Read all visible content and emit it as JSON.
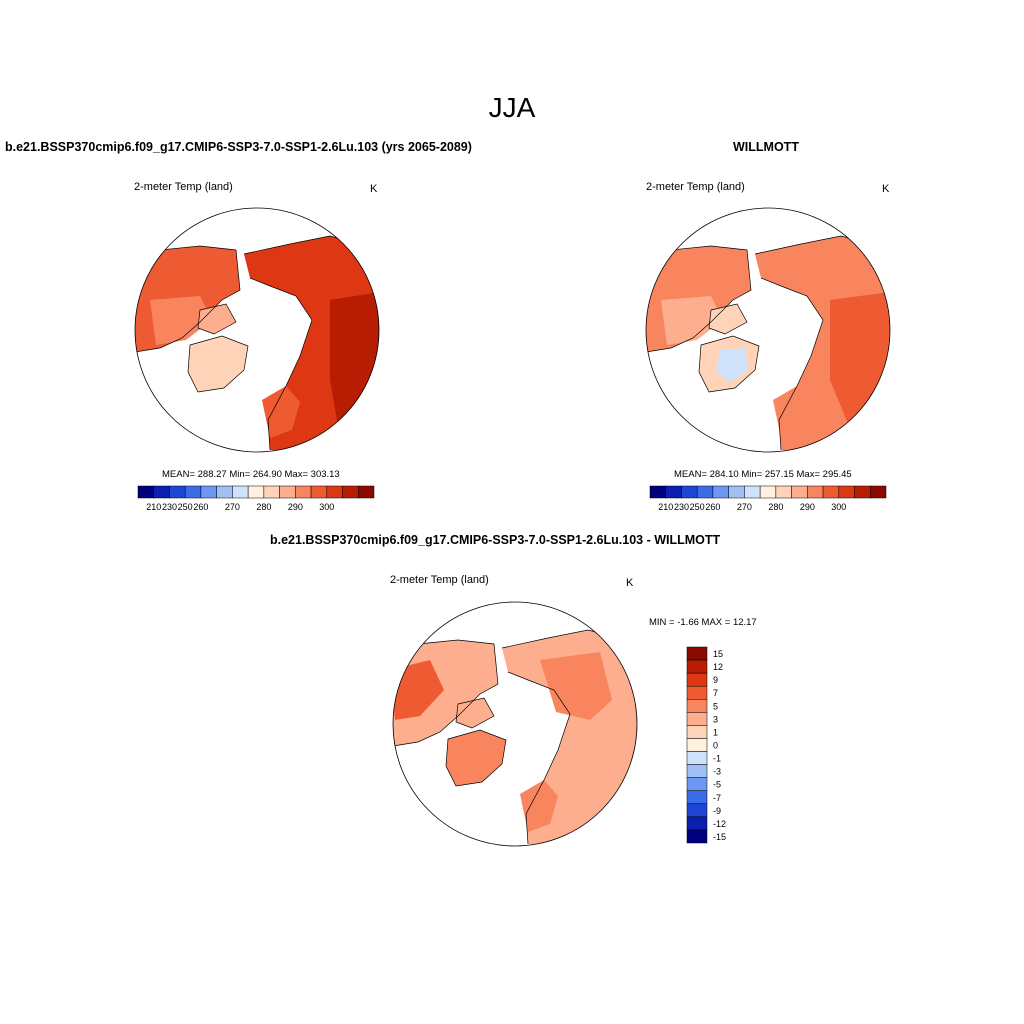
{
  "page": {
    "title": "JJA"
  },
  "colors": {
    "abs_levels": [
      "#00007f",
      "#0a1fb0",
      "#1f45d4",
      "#3a6ce8",
      "#6d97f2",
      "#a0bff7",
      "#cfe2fb",
      "#fff1df",
      "#fed3b8",
      "#fcae8f",
      "#f9855f",
      "#ee5a32",
      "#dd3813",
      "#b81d04",
      "#8a0a00"
    ],
    "diff_levels": [
      "#00007f",
      "#0a1fb0",
      "#1f45d4",
      "#3a6ce8",
      "#6d97f2",
      "#a0bff7",
      "#cfe2fb",
      "#fff1df",
      "#fed3b8",
      "#fcae8f",
      "#f9855f",
      "#ee5a32",
      "#dd3813",
      "#b81d04",
      "#8a0a00"
    ]
  },
  "panels": {
    "top_left": {
      "title": "b.e21.BSSP370cmip6.f09_g17.CMIP6-SSP3-7.0-SSP1-2.6Lu.103 (yrs 2065-2089)",
      "variable": "2-meter Temp (land)",
      "unit": "K",
      "stats": "MEAN= 288.27  Min= 264.90  Max= 303.13",
      "colorbar_labels": [
        "210",
        "230",
        "250",
        "260",
        "270",
        "280",
        "290",
        "300"
      ]
    },
    "top_right": {
      "title": "WILLMOTT",
      "variable": "2-meter Temp (land)",
      "unit": "K",
      "stats": "MEAN= 284.10  Min= 257.15  Max= 295.45",
      "colorbar_labels": [
        "210",
        "230",
        "250",
        "260",
        "270",
        "280",
        "290",
        "300"
      ]
    },
    "bottom": {
      "title": "b.e21.BSSP370cmip6.f09_g17.CMIP6-SSP3-7.0-SSP1-2.6Lu.103 - WILLMOTT",
      "variable": "2-meter Temp (land)",
      "unit": "K",
      "stats": "MIN =  -1.66 MAX =  12.17",
      "colorbar_labels": [
        "15",
        "12",
        "9",
        "7",
        "5",
        "3",
        "1",
        "0",
        "-1",
        "-3",
        "-5",
        "-7",
        "-9",
        "-12",
        "-15"
      ]
    }
  }
}
